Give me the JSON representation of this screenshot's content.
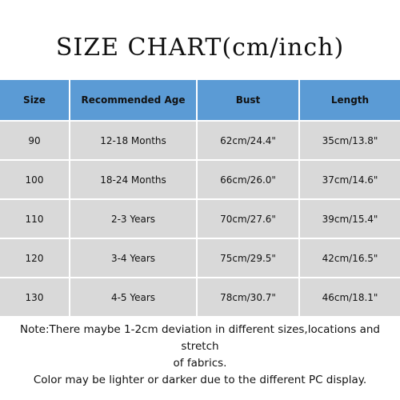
{
  "title": "SIZE CHART(cm/inch)",
  "table": {
    "header": [
      "Size",
      "Recommended Age",
      "Bust",
      "Length"
    ],
    "rows": [
      [
        "90",
        "12-18 Months",
        "62cm/24.4\"",
        "35cm/13.8\""
      ],
      [
        "100",
        "18-24 Months",
        "66cm/26.0\"",
        "37cm/14.6\""
      ],
      [
        "110",
        "2-3 Years",
        "70cm/27.6\"",
        "39cm/15.4\""
      ],
      [
        "120",
        "3-4 Years",
        "75cm/29.5\"",
        "42cm/16.5\""
      ],
      [
        "130",
        "4-5 Years",
        "78cm/30.7\"",
        "46cm/18.1\""
      ]
    ]
  },
  "note": [
    "Note:There maybe 1-2cm deviation in different sizes,locations and stretch",
    "of fabrics.",
    "Color may be lighter or darker due to the different PC display."
  ]
}
